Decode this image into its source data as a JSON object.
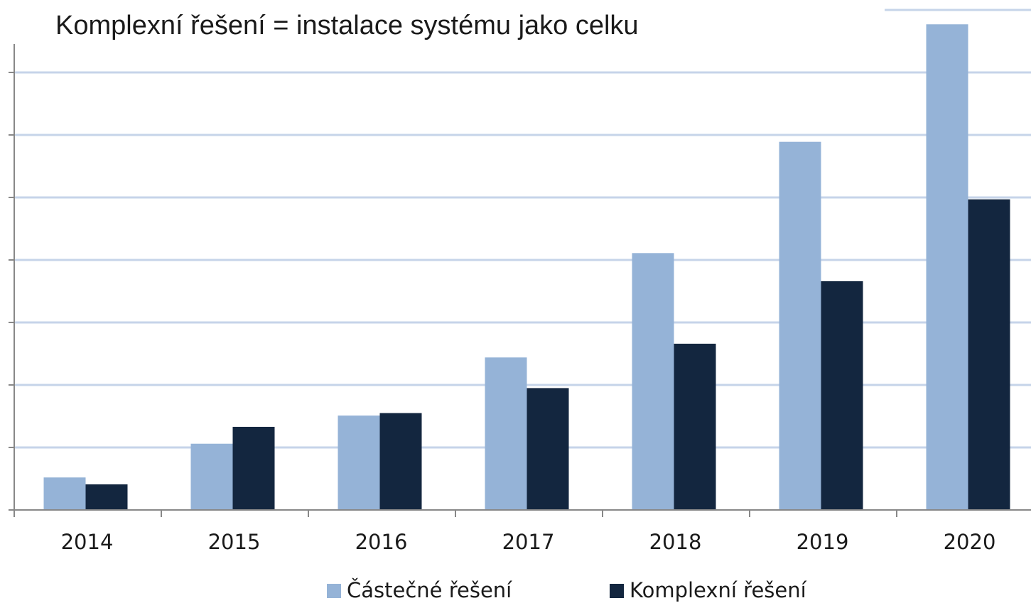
{
  "chart_data": {
    "type": "bar",
    "title": "Komplexní řešení = instalace systému jako celku",
    "categories": [
      "2014",
      "2015",
      "2016",
      "2017",
      "2018",
      "2019",
      "2020"
    ],
    "series": [
      {
        "name": "Částečné řešení",
        "color": "#95b3d7",
        "values": [
          0.52,
          1.06,
          1.51,
          2.44,
          4.11,
          5.89,
          7.77
        ]
      },
      {
        "name": "Komplexní řešení",
        "color": "#13263f",
        "values": [
          0.41,
          1.33,
          1.55,
          1.95,
          2.66,
          3.66,
          4.97
        ]
      }
    ],
    "ylim": [
      0,
      8
    ],
    "yticks": [
      0,
      1,
      2,
      3,
      4,
      5,
      6,
      7,
      8
    ],
    "grid": true
  }
}
